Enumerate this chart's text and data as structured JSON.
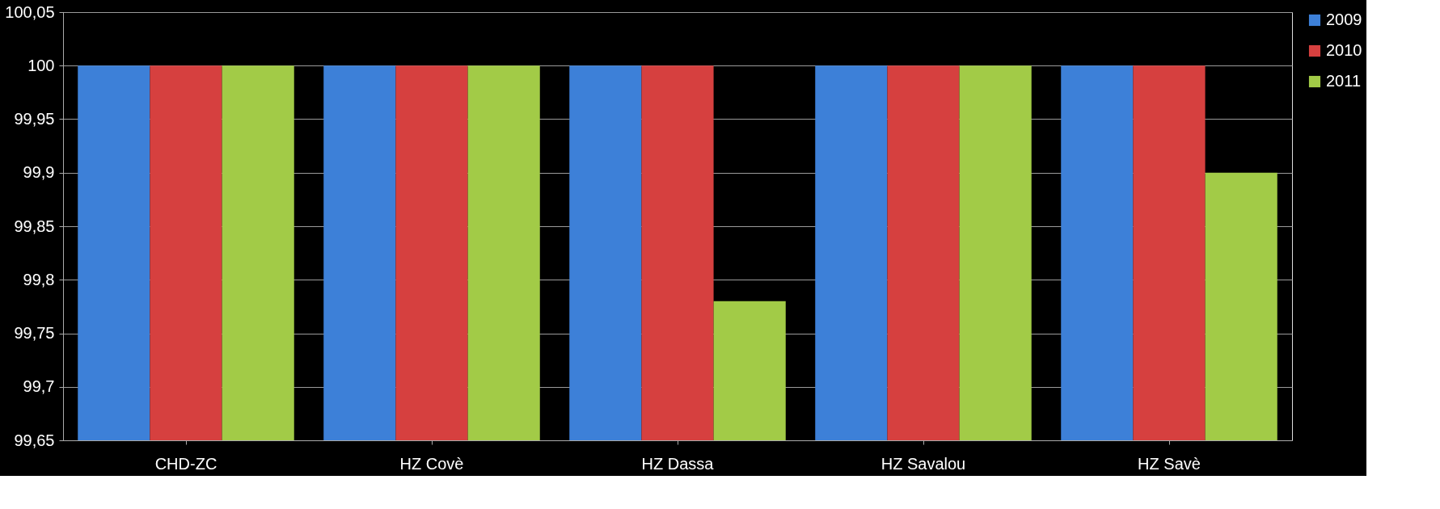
{
  "chart_data": {
    "type": "bar",
    "categories": [
      "CHD-ZC",
      "HZ Covè",
      "HZ Dassa",
      "HZ Savalou",
      "HZ Savè"
    ],
    "series": [
      {
        "name": "2009",
        "color": "#3d80d8",
        "values": [
          100,
          100,
          100,
          100,
          100
        ]
      },
      {
        "name": "2010",
        "color": "#d6403f",
        "values": [
          100,
          100,
          100,
          100,
          100
        ]
      },
      {
        "name": "2011",
        "color": "#a2cb47",
        "values": [
          100,
          100,
          99.78,
          100,
          99.9
        ]
      }
    ],
    "ylim": [
      99.65,
      100.05
    ],
    "yticks": [
      {
        "value": 99.65,
        "label": "99,65"
      },
      {
        "value": 99.7,
        "label": "99,7"
      },
      {
        "value": 99.75,
        "label": "99,75"
      },
      {
        "value": 99.8,
        "label": "99,8"
      },
      {
        "value": 99.85,
        "label": "99,85"
      },
      {
        "value": 99.9,
        "label": "99,9"
      },
      {
        "value": 99.95,
        "label": "99,95"
      },
      {
        "value": 100,
        "label": "100"
      },
      {
        "value": 100.05,
        "label": "100,05"
      }
    ],
    "grid": "y",
    "legend": "right"
  }
}
